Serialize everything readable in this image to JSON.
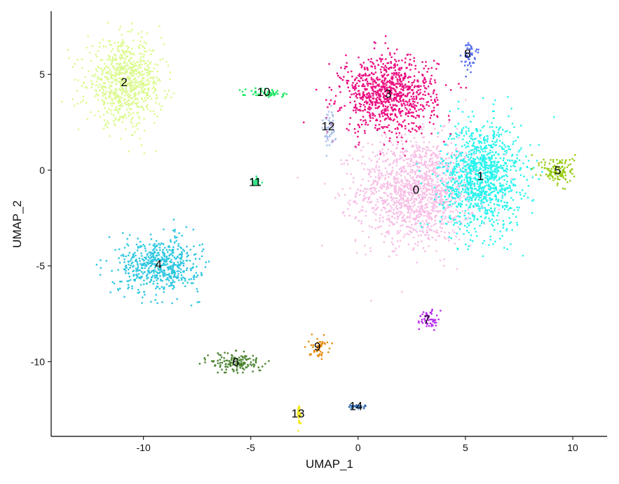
{
  "chart_data": {
    "type": "scatter",
    "title": "",
    "xlabel": "UMAP_1",
    "ylabel": "UMAP_2",
    "xlim": [
      -14.3,
      11.6
    ],
    "ylim": [
      -13.9,
      8.3
    ],
    "xticks": [
      -10,
      -5,
      0,
      5,
      10
    ],
    "yticks": [
      -10,
      -5,
      0,
      5
    ],
    "xtick_labels": [
      "-10",
      "-5",
      "0",
      "5",
      "10"
    ],
    "ytick_labels": [
      "-10",
      "-5",
      "0",
      "5"
    ],
    "grid": false,
    "legend": "none",
    "clusters": [
      {
        "label": "0",
        "color": "#F7BEE6",
        "center": [
          2.7,
          -1.0
        ],
        "spread": [
          2.5,
          2.5
        ]
      },
      {
        "label": "1",
        "color": "#29F4EE",
        "center": [
          5.7,
          -0.3
        ],
        "spread": [
          1.7,
          2.6
        ]
      },
      {
        "label": "2",
        "color": "#DBFA8E",
        "center": [
          -10.9,
          4.6
        ],
        "spread": [
          1.6,
          1.9
        ]
      },
      {
        "label": "3",
        "color": "#EB0C81",
        "center": [
          1.4,
          4.0
        ],
        "spread": [
          2.0,
          1.8
        ]
      },
      {
        "label": "4",
        "color": "#2DC6E0",
        "center": [
          -9.3,
          -4.9
        ],
        "spread": [
          1.7,
          1.3
        ]
      },
      {
        "label": "5",
        "color": "#9ACD17",
        "center": [
          9.3,
          0.0
        ],
        "spread": [
          0.7,
          0.7
        ]
      },
      {
        "label": "6",
        "color": "#4A8330",
        "center": [
          -5.7,
          -10.0
        ],
        "spread": [
          1.1,
          0.5
        ]
      },
      {
        "label": "7",
        "color": "#B62BEC",
        "center": [
          3.2,
          -7.8
        ],
        "spread": [
          0.4,
          0.5
        ]
      },
      {
        "label": "8",
        "color": "#4F6AEC",
        "center": [
          5.1,
          6.1
        ],
        "spread": [
          0.3,
          0.6
        ]
      },
      {
        "label": "9",
        "color": "#E68C12",
        "center": [
          -1.9,
          -9.2
        ],
        "spread": [
          0.4,
          0.5
        ]
      },
      {
        "label": "10",
        "color": "#1BE761",
        "center": [
          -4.4,
          4.1
        ],
        "spread": [
          1.0,
          0.2
        ]
      },
      {
        "label": "11",
        "color": "#35E589",
        "center": [
          -4.8,
          -0.6
        ],
        "spread": [
          0.2,
          0.2
        ]
      },
      {
        "label": "12",
        "color": "#AFC2EB",
        "center": [
          -1.4,
          2.3
        ],
        "spread": [
          0.25,
          0.9
        ]
      },
      {
        "label": "13",
        "color": "#F4E81E",
        "center": [
          -2.8,
          -12.7
        ],
        "spread": [
          0.08,
          0.5
        ]
      },
      {
        "label": "14",
        "color": "#3B72B6",
        "center": [
          -0.1,
          -12.3
        ],
        "spread": [
          0.4,
          0.1
        ]
      }
    ]
  }
}
